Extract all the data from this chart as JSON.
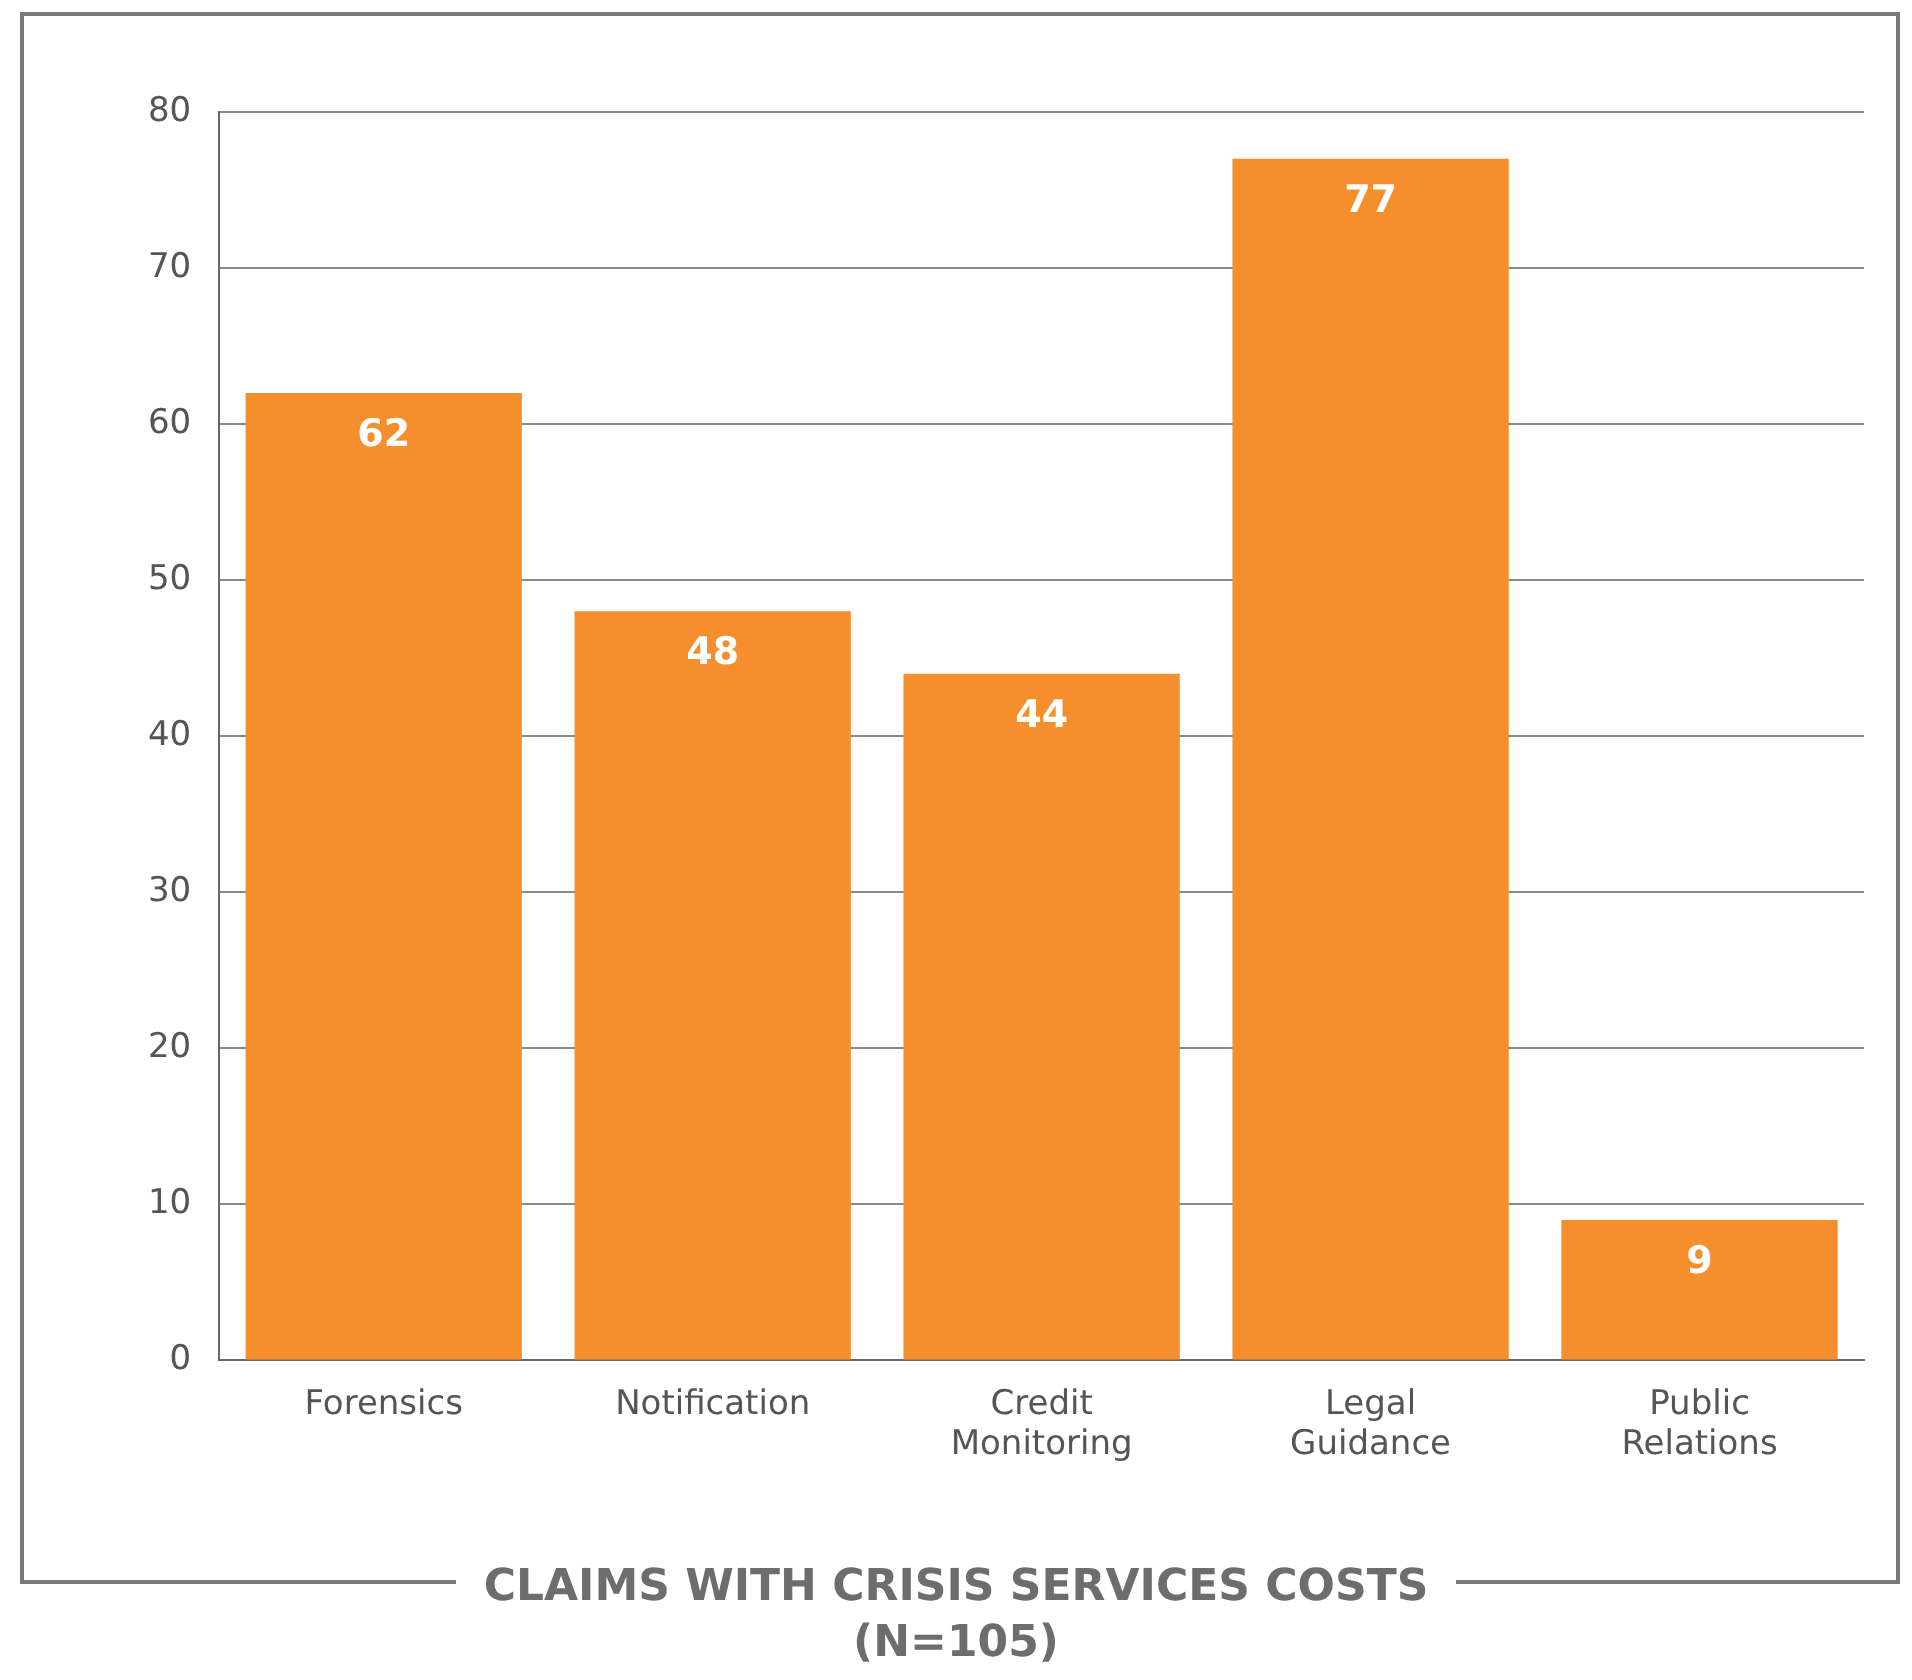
{
  "chart_data": {
    "type": "bar",
    "title": "CLAIMS WITH CRISIS SERVICES COSTS\n(N=105)",
    "categories": [
      "Forensics",
      "Notification",
      "Credit Monitoring",
      "Legal Guidance",
      "Public Relations"
    ],
    "values": [
      62,
      48,
      44,
      77,
      9
    ],
    "color": "#f58f2d",
    "ylim": [
      0,
      80
    ],
    "yticks": [
      0,
      10,
      20,
      30,
      40,
      50,
      60,
      70,
      80
    ],
    "grid": "y",
    "data_labels": true,
    "legend": false
  }
}
